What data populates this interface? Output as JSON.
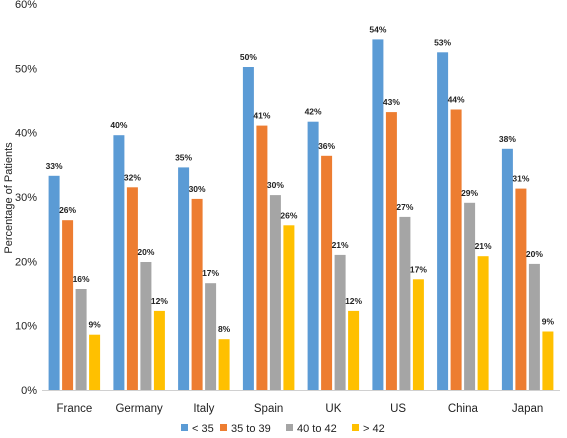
{
  "chart_data": {
    "type": "bar",
    "ylabel": "Percentage of Patients",
    "ylim": [
      0,
      60
    ],
    "yticks": [
      "0%",
      "10%",
      "20%",
      "30%",
      "40%",
      "50%",
      "60%"
    ],
    "ytick_values": [
      0,
      10,
      20,
      30,
      40,
      50,
      60
    ],
    "categories": [
      "France",
      "Germany",
      "Italy",
      "Spain",
      "UK",
      "US",
      "China",
      "Japan"
    ],
    "series": [
      {
        "name": "< 35",
        "color": "#5B9BD5",
        "values": [
          33.3,
          39.6,
          34.6,
          50.2,
          41.7,
          54.5,
          52.5,
          37.5
        ],
        "labels": [
          "33%",
          "40%",
          "35%",
          "50%",
          "42%",
          "54%",
          "53%",
          "38%"
        ]
      },
      {
        "name": "35 to 39",
        "color": "#ED7D31",
        "values": [
          26.4,
          31.5,
          29.7,
          41.1,
          36.4,
          43.2,
          43.6,
          31.3
        ],
        "labels": [
          "26%",
          "32%",
          "30%",
          "41%",
          "36%",
          "43%",
          "44%",
          "31%"
        ]
      },
      {
        "name": "40 to 42",
        "color": "#A5A5A5",
        "values": [
          15.7,
          19.9,
          16.6,
          30.3,
          21.0,
          26.9,
          29.1,
          19.6
        ],
        "labels": [
          "16%",
          "20%",
          "17%",
          "30%",
          "21%",
          "27%",
          "29%",
          "20%"
        ]
      },
      {
        "name": "> 42",
        "color": "#FFC000",
        "values": [
          8.6,
          12.3,
          7.9,
          25.6,
          12.3,
          17.2,
          20.8,
          9.1
        ],
        "labels": [
          "9%",
          "12%",
          "8%",
          "26%",
          "12%",
          "17%",
          "21%",
          "9%"
        ]
      }
    ],
    "grid": false,
    "legend_position": "bottom"
  }
}
